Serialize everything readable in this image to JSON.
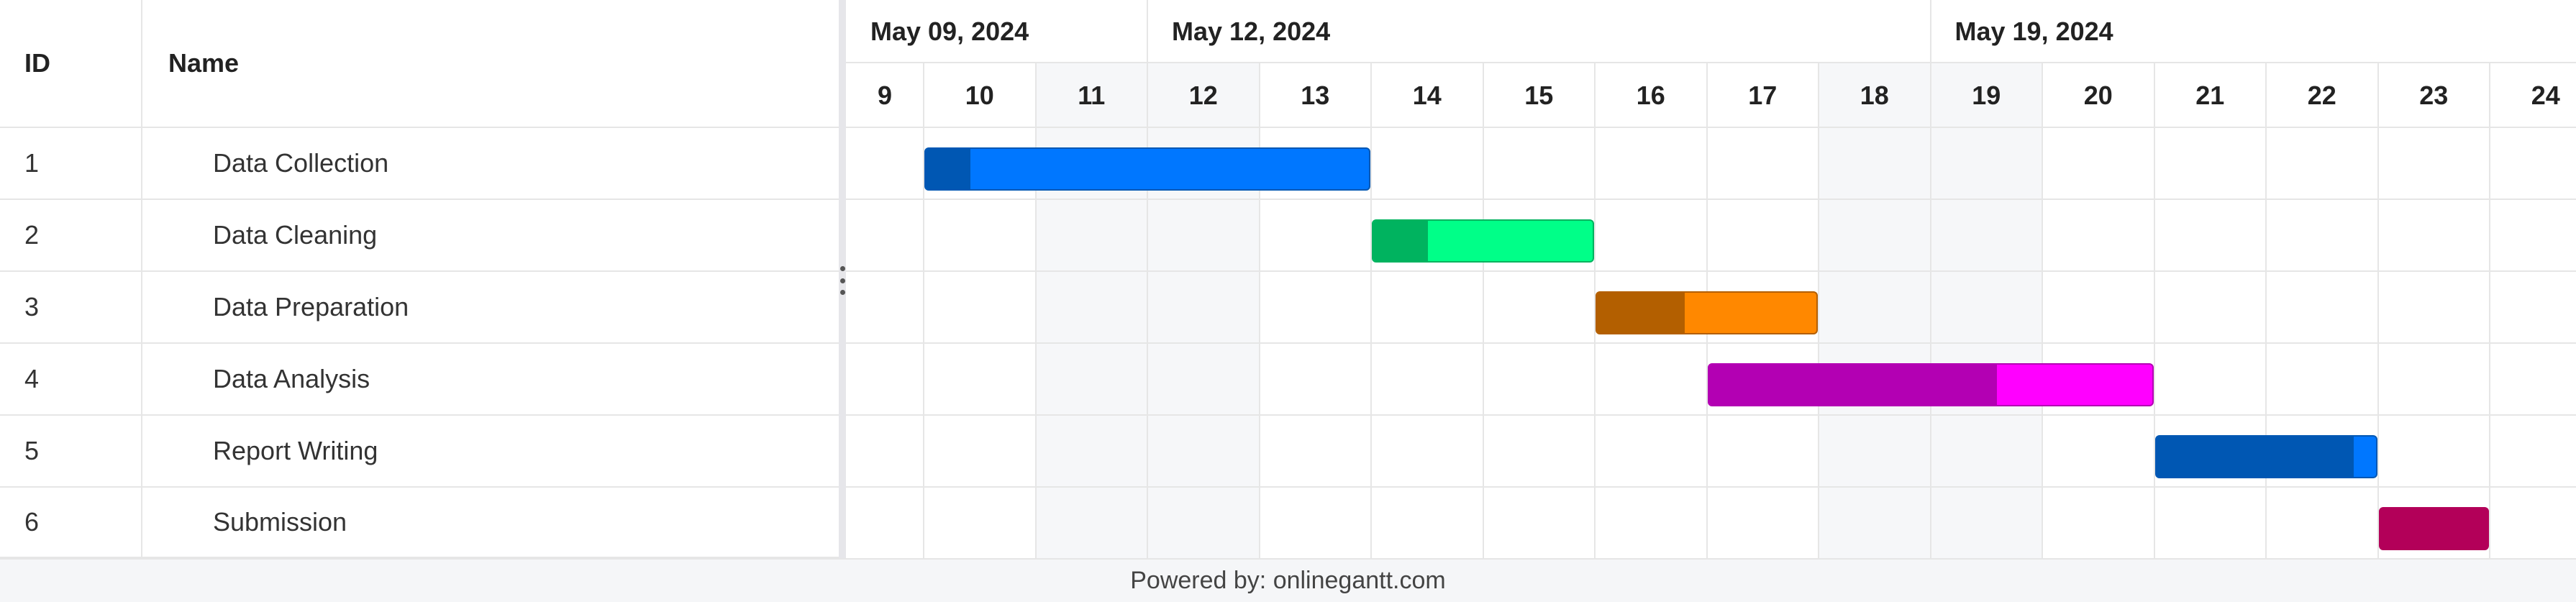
{
  "headers": {
    "id": "ID",
    "name": "Name"
  },
  "tasks": [
    {
      "id": "1",
      "name": "Data Collection",
      "start": 10,
      "end": 13,
      "progress": 0.1,
      "color": "#0077FF",
      "progress_color": "#0057B3"
    },
    {
      "id": "2",
      "name": "Data Cleaning",
      "start": 14,
      "end": 15,
      "progress": 0.25,
      "color": "#00FF88",
      "progress_color": "#00B35F"
    },
    {
      "id": "3",
      "name": "Data Preparation",
      "start": 16,
      "end": 17,
      "progress": 0.4,
      "color": "#FF8800",
      "progress_color": "#B35F00"
    },
    {
      "id": "4",
      "name": "Data Analysis",
      "start": 17,
      "end": 20,
      "progress": 0.65,
      "color": "#FF00FF",
      "progress_color": "#B300B3"
    },
    {
      "id": "5",
      "name": "Report Writing",
      "start": 21,
      "end": 22,
      "progress": 0.9,
      "color": "#0077FF",
      "progress_color": "#0057B3"
    },
    {
      "id": "6",
      "name": "Submission",
      "start": 23,
      "end": 23,
      "progress": 1.0,
      "color": "#B30059",
      "progress_color": "#B30059"
    }
  ],
  "timeline": {
    "weeks": [
      {
        "label": "May 09, 2024",
        "first_day": 9
      },
      {
        "label": "May 12, 2024",
        "first_day": 12
      },
      {
        "label": "May 19, 2024",
        "first_day": 19
      }
    ],
    "days": [
      9,
      10,
      11,
      12,
      13,
      14,
      15,
      16,
      17,
      18,
      19,
      20,
      21,
      22,
      23,
      24
    ],
    "weekend_days": [
      11,
      12,
      18,
      19
    ]
  },
  "footer": {
    "text": "Powered by: onlinegantt.com"
  }
}
